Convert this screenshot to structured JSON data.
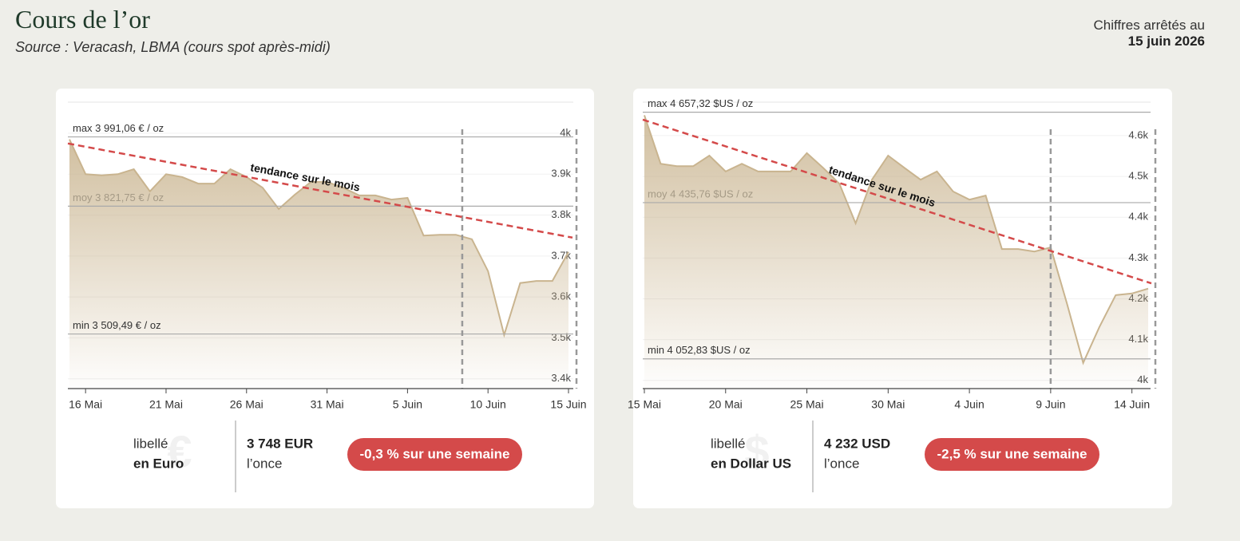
{
  "header": {
    "title": "Cours de l’or",
    "subtitle": "Source : Veracash, LBMA (cours spot après-midi)",
    "date_prefix": "Chiffres arrêtés au",
    "date": "15 juin 2026"
  },
  "chart_data": [
    {
      "type": "line",
      "color": "#c9b48f",
      "categories": [
        null,
        "16 Mai",
        null,
        null,
        null,
        null,
        "21 Mai",
        null,
        null,
        null,
        null,
        "26 Mai",
        null,
        null,
        null,
        null,
        "31 Mai",
        null,
        null,
        null,
        null,
        "5 Juin",
        null,
        null,
        null,
        null,
        "10 Juin",
        null,
        null,
        null,
        null,
        "15 Juin"
      ],
      "values": [
        3985,
        3900,
        3897,
        3900,
        3912,
        3858,
        3900,
        3893,
        3877,
        3877,
        3912,
        3893,
        3867,
        3815,
        3850,
        3881,
        3881,
        3867,
        3848,
        3848,
        3838,
        3842,
        3750,
        3752,
        3752,
        3741,
        3663,
        3507,
        3634,
        3639,
        3639,
        3710
      ],
      "ylim": [
        3376,
        4076
      ],
      "yticks": [
        {
          "value": 3400,
          "label": "3.4k"
        },
        {
          "value": 3500,
          "label": "3.5k"
        },
        {
          "value": 3600,
          "label": "3.6k"
        },
        {
          "value": 3700,
          "label": "3.7k"
        },
        {
          "value": 3800,
          "label": "3.8k"
        },
        {
          "value": 3900,
          "label": "3.9k"
        },
        {
          "value": 4000,
          "label": "4k"
        }
      ],
      "ref_lines": [
        {
          "label": "max 3 991,06 € / oz",
          "value": 3991.06
        },
        {
          "label": "moy 3 821,75 € / oz",
          "value": 3821.75
        },
        {
          "label": "min 3 509,49 € / oz",
          "value": 3509.49
        }
      ],
      "trend": {
        "label": "tendance sur le mois",
        "color": "#d44a4a",
        "values": [
          3975,
          3745
        ]
      },
      "summary": {
        "label": "libellé",
        "currency": "en Euro",
        "symbol": "€",
        "price": "3 748 EUR",
        "unit": "l’once",
        "change": "-0,3 % sur une semaine"
      }
    },
    {
      "type": "line",
      "color": "#c9b48f",
      "categories": [
        "15 Mai",
        null,
        null,
        null,
        null,
        "20 Mai",
        null,
        null,
        null,
        null,
        "25 Mai",
        null,
        null,
        null,
        null,
        "30 Mai",
        null,
        null,
        null,
        null,
        "4 Juin",
        null,
        null,
        null,
        null,
        "9 Juin",
        null,
        null,
        null,
        null,
        "14 Juin",
        null
      ],
      "values": [
        4650,
        4531,
        4525,
        4525,
        4551,
        4512,
        4531,
        4512,
        4512,
        4512,
        4557,
        4521,
        4482,
        4385,
        4492,
        4551,
        4521,
        4492,
        4512,
        4463,
        4443,
        4453,
        4322,
        4322,
        4316,
        4326,
        4189,
        4043,
        4131,
        4209,
        4213,
        4225
      ],
      "ylim": [
        3980,
        4682
      ],
      "yticks": [
        {
          "value": 4000,
          "label": "4k"
        },
        {
          "value": 4100,
          "label": "4.1k"
        },
        {
          "value": 4200,
          "label": "4.2k"
        },
        {
          "value": 4300,
          "label": "4.3k"
        },
        {
          "value": 4400,
          "label": "4.4k"
        },
        {
          "value": 4500,
          "label": "4.5k"
        },
        {
          "value": 4600,
          "label": "4.6k"
        }
      ],
      "ref_lines": [
        {
          "label": "max 4 657,32 $US / oz",
          "value": 4657.32
        },
        {
          "label": "moy 4 435,76 $US / oz",
          "value": 4435.76
        },
        {
          "label": "min 4 052,83 $US / oz",
          "value": 4052.83
        }
      ],
      "trend": {
        "label": "tendance sur le mois",
        "color": "#d44a4a",
        "values": [
          4639,
          4238
        ]
      },
      "summary": {
        "label": "libellé",
        "currency": "en Dollar US",
        "symbol": "$",
        "price": "4 232 USD",
        "unit": "l’once",
        "change": "-2,5 % sur une semaine"
      }
    }
  ]
}
